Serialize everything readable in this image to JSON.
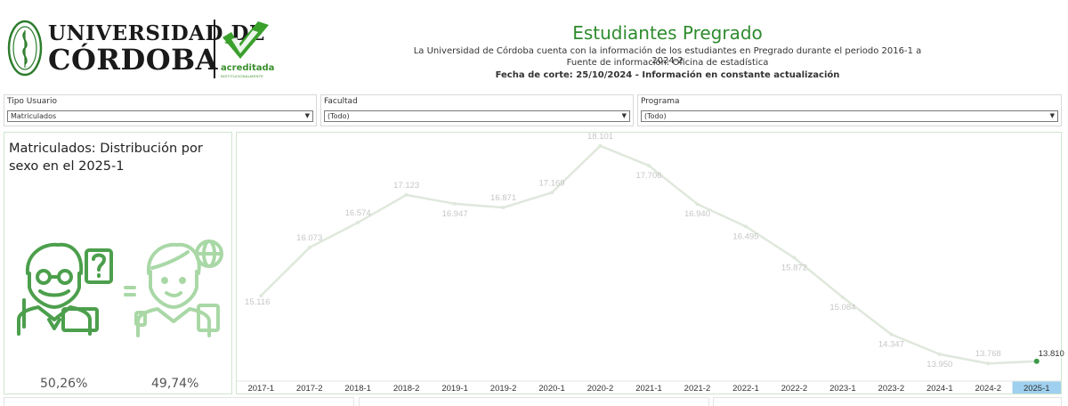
{
  "header": {
    "university_line1": "UNIVERSIDAD DE",
    "university_line2": "CÓRDOBA",
    "accreditation": "acreditada",
    "accreditation_sub": "INSTITUCIONALMENTE",
    "title": "Estudiantes Pregrado",
    "subtitle1": "La Universidad de Córdoba cuenta con la información de los estudiantes en Pregrado durante el periodo 2016-1 a 2024-2",
    "subtitle2": "Fuente de información: Oficina de estadística",
    "subtitle3": "Fecha de corte: 25/10/2024 - Información en constante actualización"
  },
  "filters": [
    {
      "label": "Tipo Usuario",
      "value": "Matriculados"
    },
    {
      "label": "Facultad",
      "value": "(Todo)"
    },
    {
      "label": "Programa",
      "value": "(Todo)"
    }
  ],
  "distribution": {
    "title": "Matriculados: Distribución por sexo en el 2025-1",
    "male_pct": "50,26%",
    "female_pct": "49,74%",
    "male_icon": "male-student-icon",
    "female_icon": "female-student-icon"
  },
  "colors": {
    "brand_green": "#2e8b2e",
    "male_green": "#4c9f4c",
    "female_green": "#a9d8a6",
    "line": "#dfe8dc",
    "highlight": "#9fd0ef"
  },
  "chart_data": {
    "type": "line",
    "categories": [
      "2017-1",
      "2017-2",
      "2018-1",
      "2018-2",
      "2019-1",
      "2019-2",
      "2020-1",
      "2020-2",
      "2021-1",
      "2021-2",
      "2022-1",
      "2022-2",
      "2023-1",
      "2023-2",
      "2024-1",
      "2024-2",
      "2025-1"
    ],
    "values": [
      15116,
      16073,
      16574,
      17123,
      16947,
      16871,
      17169,
      18101,
      17706,
      16940,
      16495,
      15872,
      15084,
      14347,
      13950,
      13768,
      13810
    ],
    "labels": [
      "15.116",
      "16.073",
      "16.574",
      "17.123",
      "16.947",
      "16.871",
      "17.169",
      "18.101",
      "17.706",
      "16.940",
      "16.495",
      "15.872",
      "15.084",
      "14.347",
      "13.950",
      "13.768",
      "13.810"
    ],
    "highlight_index": 16,
    "ylim": [
      13700,
      18150
    ]
  }
}
